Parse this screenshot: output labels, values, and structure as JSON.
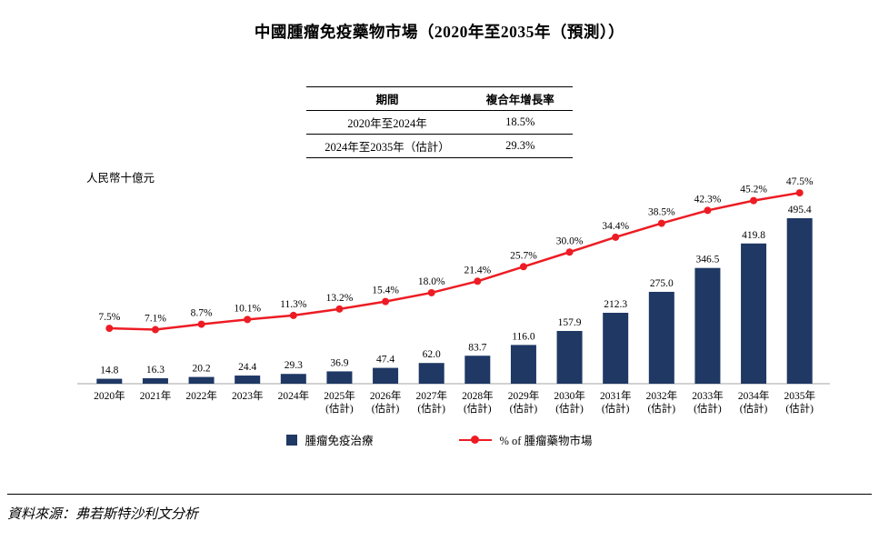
{
  "title": "中國腫瘤免疫藥物市場（2020年至2035年（預測））",
  "cagr_table": {
    "headers": [
      "期間",
      "複合年增長率"
    ],
    "rows": [
      {
        "period": "2020年至2024年",
        "cagr": "18.5%"
      },
      {
        "period": "2024年至2035年（估計）",
        "cagr": "29.3%"
      }
    ]
  },
  "y_axis_note": "人民幣十億元",
  "chart_data": {
    "type": "bar+line",
    "title": "中國腫瘤免疫藥物市場（2020年至2035年（預測））",
    "ylabel": "人民幣十億元",
    "right_axis_unit": "%",
    "grid": "off",
    "legend_position": "bottom",
    "categories": [
      "2020年",
      "2021年",
      "2022年",
      "2023年",
      "2024年",
      "2025年",
      "2026年",
      "2027年",
      "2028年",
      "2029年",
      "2030年",
      "2031年",
      "2032年",
      "2033年",
      "2034年",
      "2035年"
    ],
    "category_sublabels": [
      "",
      "",
      "",
      "",
      "",
      "(估計)",
      "(估計)",
      "(估計)",
      "(估計)",
      "(估計)",
      "(估計)",
      "(估計)",
      "(估計)",
      "(估計)",
      "(估計)",
      "(估計)"
    ],
    "series": [
      {
        "name": "腫瘤免疫治療",
        "type": "bar",
        "color": "#1F3864",
        "values": [
          14.8,
          16.3,
          20.2,
          24.4,
          29.3,
          36.9,
          47.4,
          62.0,
          83.7,
          116.0,
          157.9,
          212.3,
          275.0,
          346.5,
          419.8,
          495.4
        ]
      },
      {
        "name": "% of 腫瘤藥物市場",
        "type": "line",
        "color": "#ED1C24",
        "unit": "%",
        "values": [
          7.5,
          7.1,
          8.7,
          10.1,
          11.3,
          13.2,
          15.4,
          18.0,
          21.4,
          25.7,
          30.0,
          34.4,
          38.5,
          42.3,
          45.2,
          47.5
        ]
      }
    ]
  },
  "legend": {
    "bar_label": "腫瘤免疫治療",
    "line_label": "% of 腫瘤藥物市場"
  },
  "source": "資料來源：弗若斯特沙利文分析"
}
